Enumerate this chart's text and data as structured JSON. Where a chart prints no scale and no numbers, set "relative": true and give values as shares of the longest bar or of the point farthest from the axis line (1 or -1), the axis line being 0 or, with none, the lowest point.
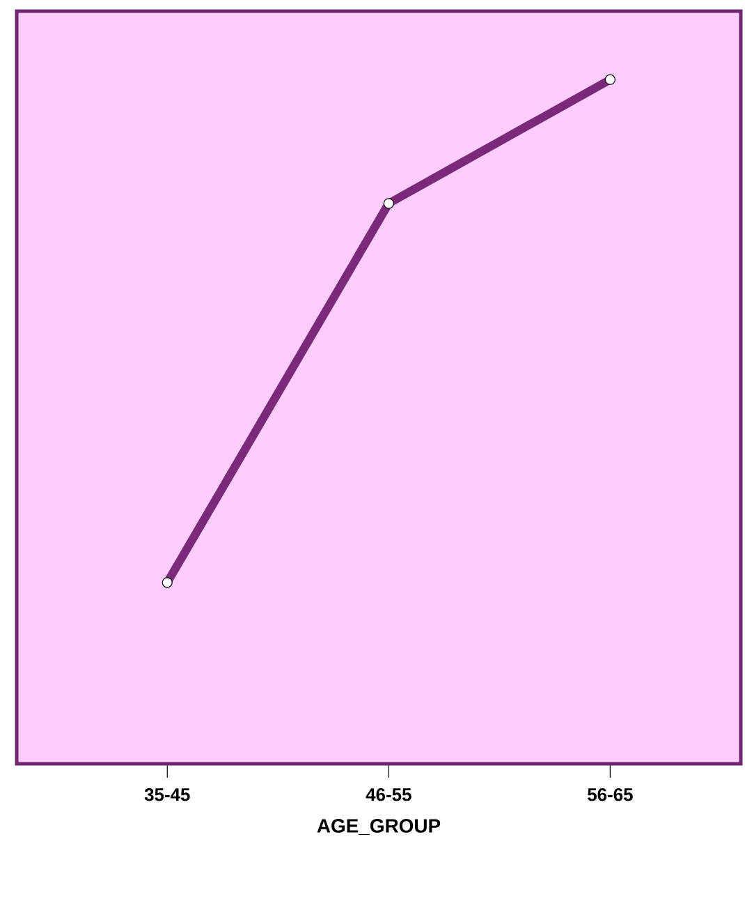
{
  "chart_data": {
    "type": "line",
    "xlabel": "AGE_GROUP",
    "categories": [
      "35-45",
      "46-55",
      "56-65"
    ],
    "series": [
      {
        "color": "#7b2a7b",
        "values": [
          0.265,
          0.819,
          1.0
        ]
      }
    ],
    "relative": true,
    "marker": "circle",
    "line_style": "solid"
  }
}
